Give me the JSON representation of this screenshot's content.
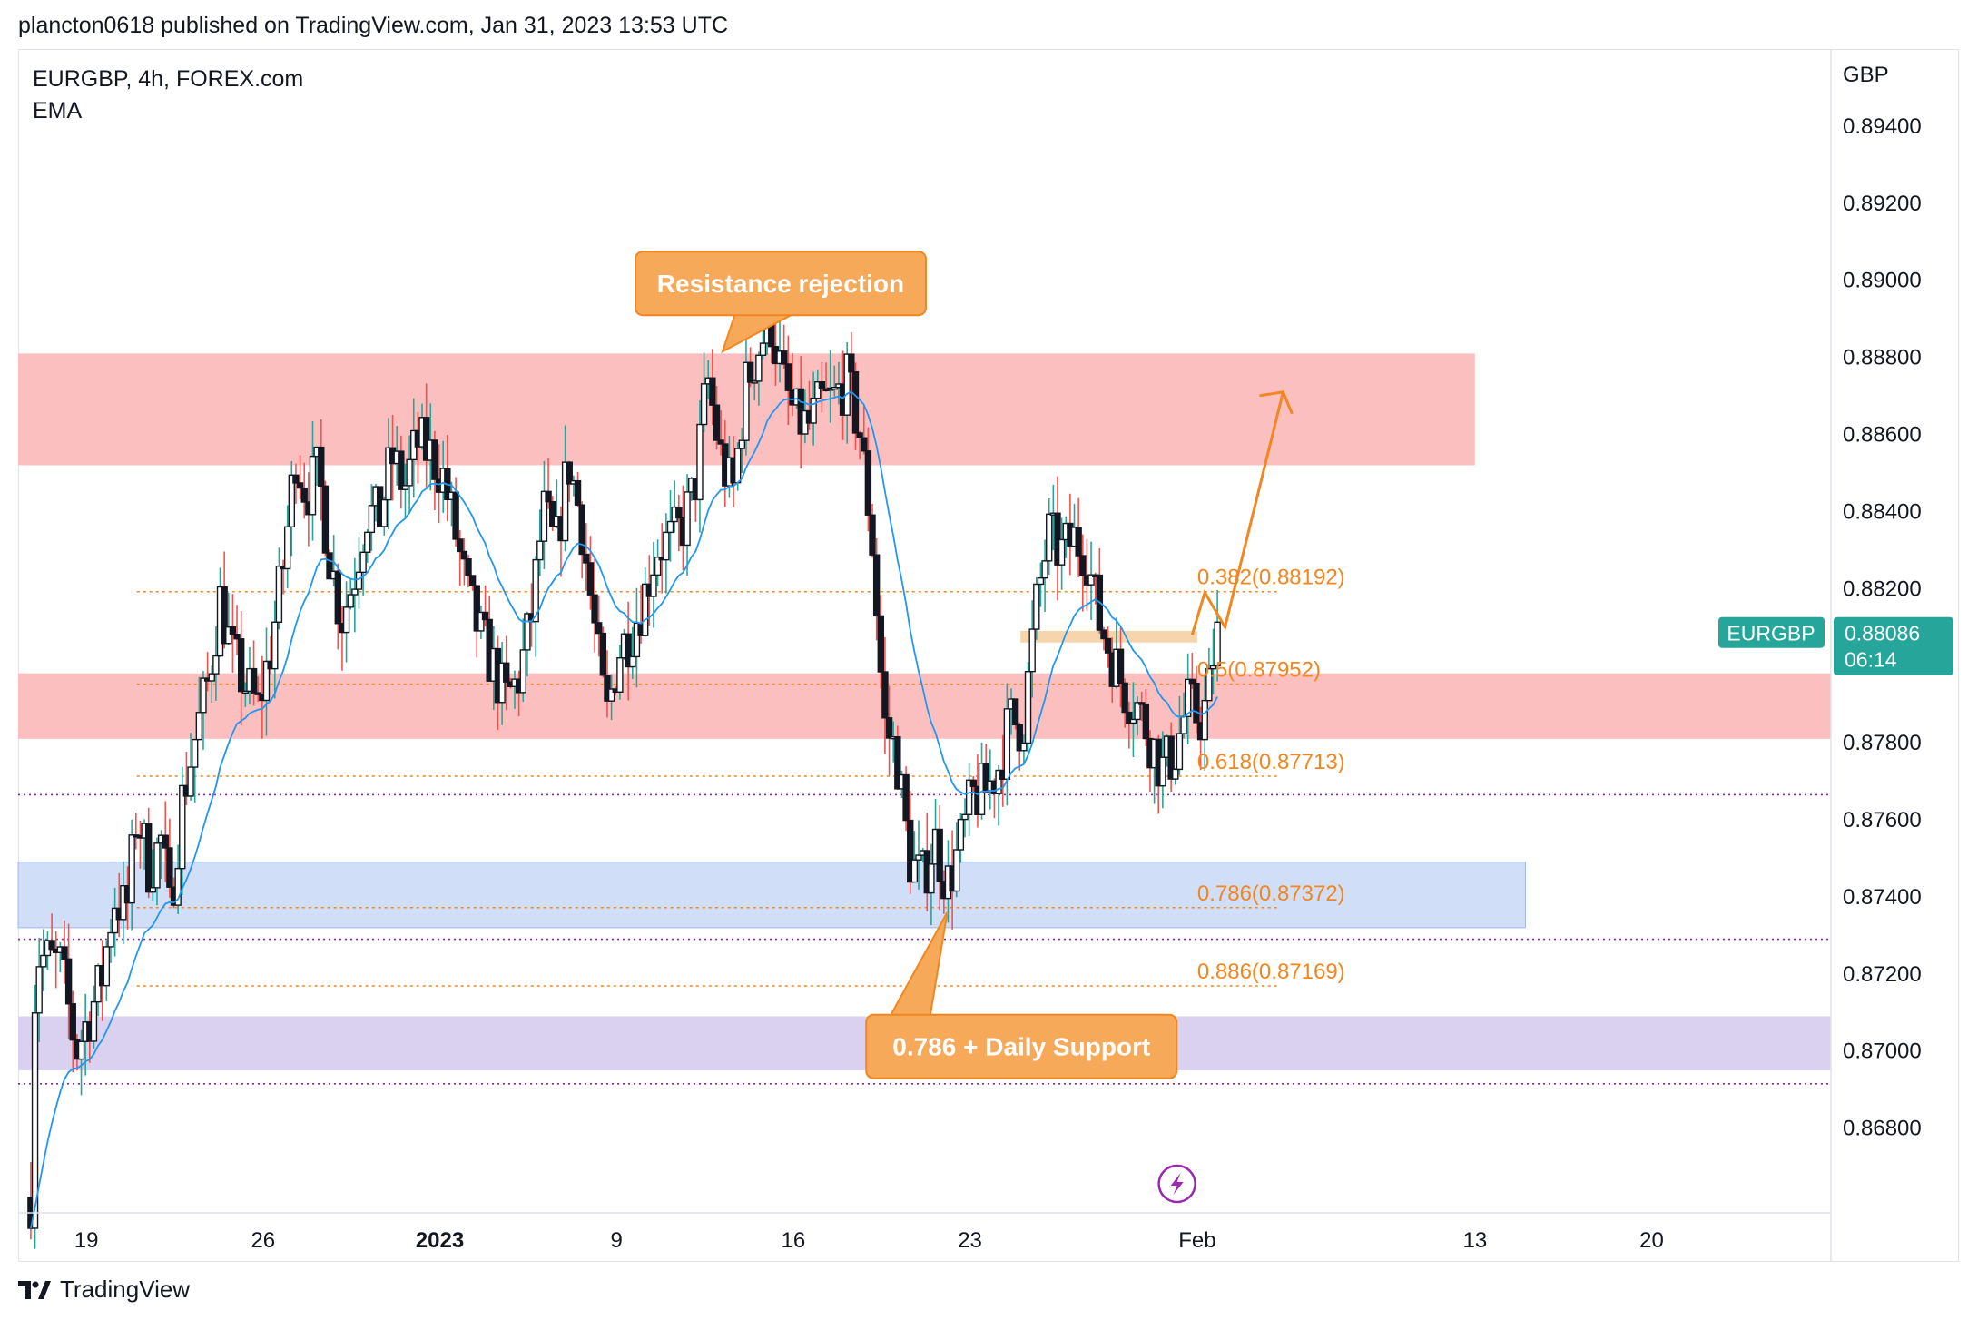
{
  "header": {
    "text": "plancton0618 published on TradingView.com, Jan 31, 2023 13:53 UTC"
  },
  "legend": {
    "symbol_line": "EURGBP, 4h, FOREX.com",
    "indicator": "EMA"
  },
  "footer": {
    "brand": "TradingView"
  },
  "colors": {
    "up": "#131722",
    "down": "#131722",
    "wick_up": "#26a69a",
    "wick_down": "#ef5350",
    "ema": "#2196f3",
    "fib": "#f2861f",
    "resistance_zone": "#fcbcbc",
    "support_zone_blue": "#cddcf7",
    "support_zone_purple": "#d8cdee",
    "price_tag": "#26a69a"
  },
  "chart_data": {
    "type": "candlestick",
    "symbol": "EURGBP",
    "timeframe": "4h",
    "exchange": "FOREX.com",
    "currency_label": "GBP",
    "y_ticks": [
      "0.89400",
      "0.89200",
      "0.89000",
      "0.88800",
      "0.88600",
      "0.88400",
      "0.88200",
      "0.88000",
      "0.87800",
      "0.87600",
      "0.87400",
      "0.87200",
      "0.87000",
      "0.86800"
    ],
    "y_range": [
      0.8658,
      0.896
    ],
    "x_ticks": [
      {
        "label": "19",
        "day": 0
      },
      {
        "label": "26",
        "day": 7
      },
      {
        "label": "2023",
        "day": 14,
        "bold": true
      },
      {
        "label": "9",
        "day": 21
      },
      {
        "label": "16",
        "day": 28
      },
      {
        "label": "23",
        "day": 35
      },
      {
        "label": "Feb",
        "day": 44
      },
      {
        "label": "13",
        "day": 55
      },
      {
        "label": "20",
        "day": 62
      }
    ],
    "x_range_days": [
      -2.7,
      69.1
    ],
    "last_price": {
      "label": "EURGBP",
      "value": "0.88086",
      "countdown": "06:14"
    },
    "zones": [
      {
        "name": "resistance-zone-upper",
        "price_top": 0.8881,
        "price_bottom": 0.8852,
        "day_start": -2.7,
        "day_end": 55,
        "color": "#fcbcbc"
      },
      {
        "name": "resistance-zone-lower",
        "price_top": 0.8798,
        "price_bottom": 0.8781,
        "day_start": -2.7,
        "day_end": 69.1,
        "color": "#fcbcbc"
      },
      {
        "name": "support-zone-blue",
        "price_top": 0.8749,
        "price_bottom": 0.8732,
        "day_start": -2.7,
        "day_end": 57,
        "color": "#cddcf7"
      },
      {
        "name": "daily-support-zone",
        "price_top": 0.8709,
        "price_bottom": 0.8695,
        "day_start": -2.7,
        "day_end": 69.1,
        "color": "#d8cdee"
      },
      {
        "name": "breakout-zone",
        "price_top": 0.8809,
        "price_bottom": 0.8806,
        "day_start": 37,
        "day_end": 44,
        "color": "#f6d3a8"
      }
    ],
    "fib_levels": [
      {
        "label": "0.382(0.88192)",
        "price": 0.88192
      },
      {
        "label": "0.5(0.87952)",
        "price": 0.87952
      },
      {
        "label": "0.618(0.87713)",
        "price": 0.87713
      },
      {
        "label": "0.786(0.87372)",
        "price": 0.87372
      },
      {
        "label": "0.886(0.87169)",
        "price": 0.87169
      }
    ],
    "purple_lines": [
      0.87665,
      0.8729,
      0.86915
    ],
    "annotations": [
      {
        "text": "Resistance rejection",
        "day": 27.5,
        "price": 0.8898
      },
      {
        "text": "0.786 + Daily Support",
        "day": 38.8,
        "price": 0.87
      }
    ],
    "projection": [
      [
        43.8,
        0.8808
      ],
      [
        44.3,
        0.8819
      ],
      [
        45.1,
        0.881
      ],
      [
        47.4,
        0.8871
      ]
    ],
    "close_path": [
      [
        -2.2,
        0.8662
      ],
      [
        -2.0,
        0.8725
      ],
      [
        -1.0,
        0.8722
      ],
      [
        -0.4,
        0.87
      ],
      [
        0.6,
        0.8718
      ],
      [
        1.1,
        0.874
      ],
      [
        1.6,
        0.8736
      ],
      [
        2.0,
        0.8762
      ],
      [
        2.5,
        0.8747
      ],
      [
        3.0,
        0.8755
      ],
      [
        3.3,
        0.8736
      ],
      [
        3.8,
        0.8765
      ],
      [
        4.3,
        0.8781
      ],
      [
        4.8,
        0.8795
      ],
      [
        5.3,
        0.8817
      ],
      [
        5.8,
        0.8802
      ],
      [
        6.3,
        0.8795
      ],
      [
        6.8,
        0.8789
      ],
      [
        7.3,
        0.8804
      ],
      [
        7.8,
        0.8826
      ],
      [
        8.3,
        0.8855
      ],
      [
        8.7,
        0.8845
      ],
      [
        9.2,
        0.885
      ],
      [
        9.6,
        0.883
      ],
      [
        10.1,
        0.8812
      ],
      [
        10.6,
        0.8823
      ],
      [
        11.1,
        0.884
      ],
      [
        11.6,
        0.8838
      ],
      [
        12.1,
        0.8854
      ],
      [
        12.6,
        0.8846
      ],
      [
        13.1,
        0.8858
      ],
      [
        13.6,
        0.8855
      ],
      [
        14.1,
        0.885
      ],
      [
        14.6,
        0.8835
      ],
      [
        15.1,
        0.8818
      ],
      [
        15.6,
        0.8808
      ],
      [
        16.1,
        0.88
      ],
      [
        16.6,
        0.8791
      ],
      [
        17.1,
        0.8796
      ],
      [
        17.6,
        0.8811
      ],
      [
        18.1,
        0.884
      ],
      [
        18.6,
        0.883
      ],
      [
        19.1,
        0.8853
      ],
      [
        19.6,
        0.8838
      ],
      [
        20.1,
        0.8811
      ],
      [
        20.6,
        0.8786
      ],
      [
        21.1,
        0.8804
      ],
      [
        21.6,
        0.8809
      ],
      [
        22.1,
        0.8818
      ],
      [
        22.6,
        0.8831
      ],
      [
        23.1,
        0.8832
      ],
      [
        23.6,
        0.8836
      ],
      [
        24.1,
        0.8846
      ],
      [
        24.6,
        0.8875
      ],
      [
        25.1,
        0.8855
      ],
      [
        25.6,
        0.8844
      ],
      [
        26.1,
        0.8872
      ],
      [
        26.6,
        0.8882
      ],
      [
        27.1,
        0.889
      ],
      [
        27.6,
        0.8873
      ],
      [
        28.1,
        0.8864
      ],
      [
        28.6,
        0.8862
      ],
      [
        29.1,
        0.8868
      ],
      [
        29.6,
        0.8869
      ],
      [
        30.1,
        0.8874
      ],
      [
        30.6,
        0.8862
      ],
      [
        31.1,
        0.8835
      ],
      [
        31.6,
        0.8785
      ],
      [
        32.1,
        0.8777
      ],
      [
        32.6,
        0.875
      ],
      [
        33.1,
        0.8744
      ],
      [
        33.6,
        0.8755
      ],
      [
        34.1,
        0.8743
      ],
      [
        34.6,
        0.8753
      ],
      [
        35.1,
        0.8766
      ],
      [
        35.6,
        0.8767
      ],
      [
        36.1,
        0.8773
      ],
      [
        36.6,
        0.8786
      ],
      [
        37.1,
        0.8784
      ],
      [
        37.6,
        0.8814
      ],
      [
        38.1,
        0.8834
      ],
      [
        38.6,
        0.8829
      ],
      [
        39.1,
        0.8833
      ],
      [
        39.6,
        0.883
      ],
      [
        40.1,
        0.8812
      ],
      [
        40.6,
        0.8803
      ],
      [
        41.1,
        0.8794
      ],
      [
        41.6,
        0.879
      ],
      [
        42.1,
        0.8782
      ],
      [
        42.6,
        0.8773
      ],
      [
        43.1,
        0.8777
      ],
      [
        43.6,
        0.879
      ],
      [
        44.1,
        0.8786
      ],
      [
        44.4,
        0.879
      ],
      [
        44.7,
        0.8806
      ],
      [
        44.9,
        0.8809
      ]
    ]
  }
}
